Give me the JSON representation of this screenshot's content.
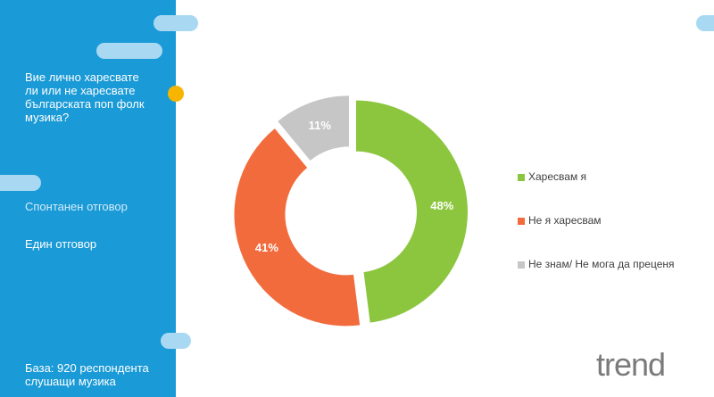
{
  "sidebar": {
    "question": "Вие лично харесвате ли или не харесвате българската поп фолк музика?",
    "note1": "Спонтанен отговор",
    "note2": "Един отговор",
    "base": "База: 920 респондента слушащи музика"
  },
  "logo": "trend",
  "chart_data": {
    "type": "donut",
    "categories": [
      "Харесвам я",
      "Не я харесвам",
      "Не знам/ Не мога да преценя"
    ],
    "values": [
      48,
      41,
      11
    ],
    "value_labels": [
      "48%",
      "41%",
      "11%"
    ],
    "colors": [
      "#8cc63f",
      "#f26b3d",
      "#c6c6c6"
    ],
    "legend": "right"
  }
}
